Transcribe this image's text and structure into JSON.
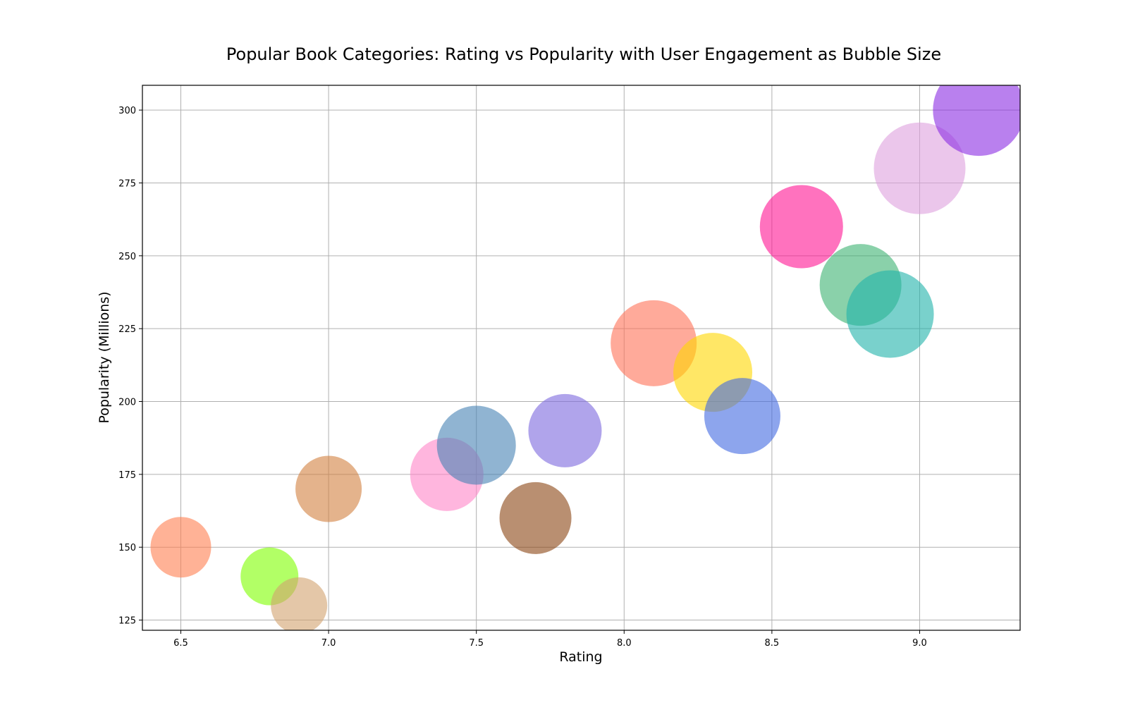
{
  "chart_data": {
    "type": "scatter",
    "title": "Popular Book Categories: Rating vs Popularity with User Engagement as Bubble Size",
    "xlabel": "Rating",
    "ylabel": "Popularity (Millions)",
    "xlim": [
      6.37,
      9.34
    ],
    "ylim": [
      121.5,
      308.5
    ],
    "xticks": [
      "6.5",
      "7.0",
      "7.5",
      "8.0",
      "8.5",
      "9.0"
    ],
    "yticks": [
      "125",
      "150",
      "175",
      "200",
      "225",
      "250",
      "275",
      "300"
    ],
    "grid": true,
    "points": [
      {
        "x": 6.5,
        "y": 150,
        "size": 86,
        "color": "#FF7F50"
      },
      {
        "x": 6.8,
        "y": 140,
        "size": 82,
        "color": "#7FFF00"
      },
      {
        "x": 6.9,
        "y": 130,
        "size": 80,
        "color": "#D2A16E"
      },
      {
        "x": 7.0,
        "y": 170,
        "size": 94,
        "color": "#D2813F"
      },
      {
        "x": 7.4,
        "y": 175,
        "size": 104,
        "color": "#FF85C8"
      },
      {
        "x": 7.5,
        "y": 185,
        "size": 112,
        "color": "#4682B4"
      },
      {
        "x": 7.7,
        "y": 160,
        "size": 102,
        "color": "#8B4513"
      },
      {
        "x": 7.8,
        "y": 190,
        "size": 104,
        "color": "#7B68DD"
      },
      {
        "x": 8.1,
        "y": 220,
        "size": 122,
        "color": "#FF7256"
      },
      {
        "x": 8.3,
        "y": 210,
        "size": 112,
        "color": "#FFD700"
      },
      {
        "x": 8.4,
        "y": 195,
        "size": 108,
        "color": "#4169E1"
      },
      {
        "x": 8.6,
        "y": 260,
        "size": 118,
        "color": "#FF1493"
      },
      {
        "x": 8.8,
        "y": 240,
        "size": 116,
        "color": "#3CB371"
      },
      {
        "x": 8.9,
        "y": 230,
        "size": 124,
        "color": "#20B2AA"
      },
      {
        "x": 9.0,
        "y": 280,
        "size": 130,
        "color": "#DDA0DD"
      },
      {
        "x": 9.2,
        "y": 300,
        "size": 130,
        "color": "#8A2BE2"
      }
    ]
  }
}
